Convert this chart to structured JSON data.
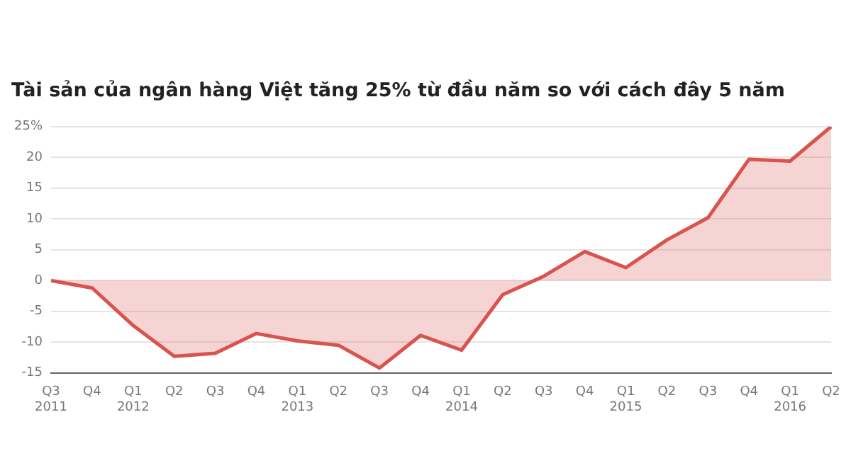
{
  "chart_data": {
    "type": "area",
    "title": "Tài sản của ngân hàng Việt tăng 25% từ đầu năm so với cách đây 5 năm",
    "categories": [
      "Q3\n2011",
      "Q4",
      "Q1\n2012",
      "Q2",
      "Q3",
      "Q4",
      "Q1\n2013",
      "Q2",
      "Q3",
      "Q4",
      "Q1\n2014",
      "Q2",
      "Q3",
      "Q4",
      "Q1\n2015",
      "Q2",
      "Q3",
      "Q4",
      "Q1\n2016",
      "Q2"
    ],
    "series": [
      {
        "color": "#d9534f",
        "values": [
          0,
          -1.2,
          -7.3,
          -12.3,
          -11.8,
          -8.6,
          -9.8,
          -10.5,
          -14.2,
          -8.9,
          -11.3,
          -2.3,
          0.7,
          4.7,
          2.1,
          6.6,
          10.2,
          19.7,
          19.4,
          25
        ]
      }
    ],
    "ylim": [
      -15,
      25
    ],
    "yticks": [
      -15,
      -10,
      -5,
      0,
      5,
      10,
      15,
      20,
      {
        "value": 25,
        "label": "25%"
      }
    ],
    "grid": "y",
    "legend": false,
    "marker": "none",
    "line_style": "solid"
  }
}
